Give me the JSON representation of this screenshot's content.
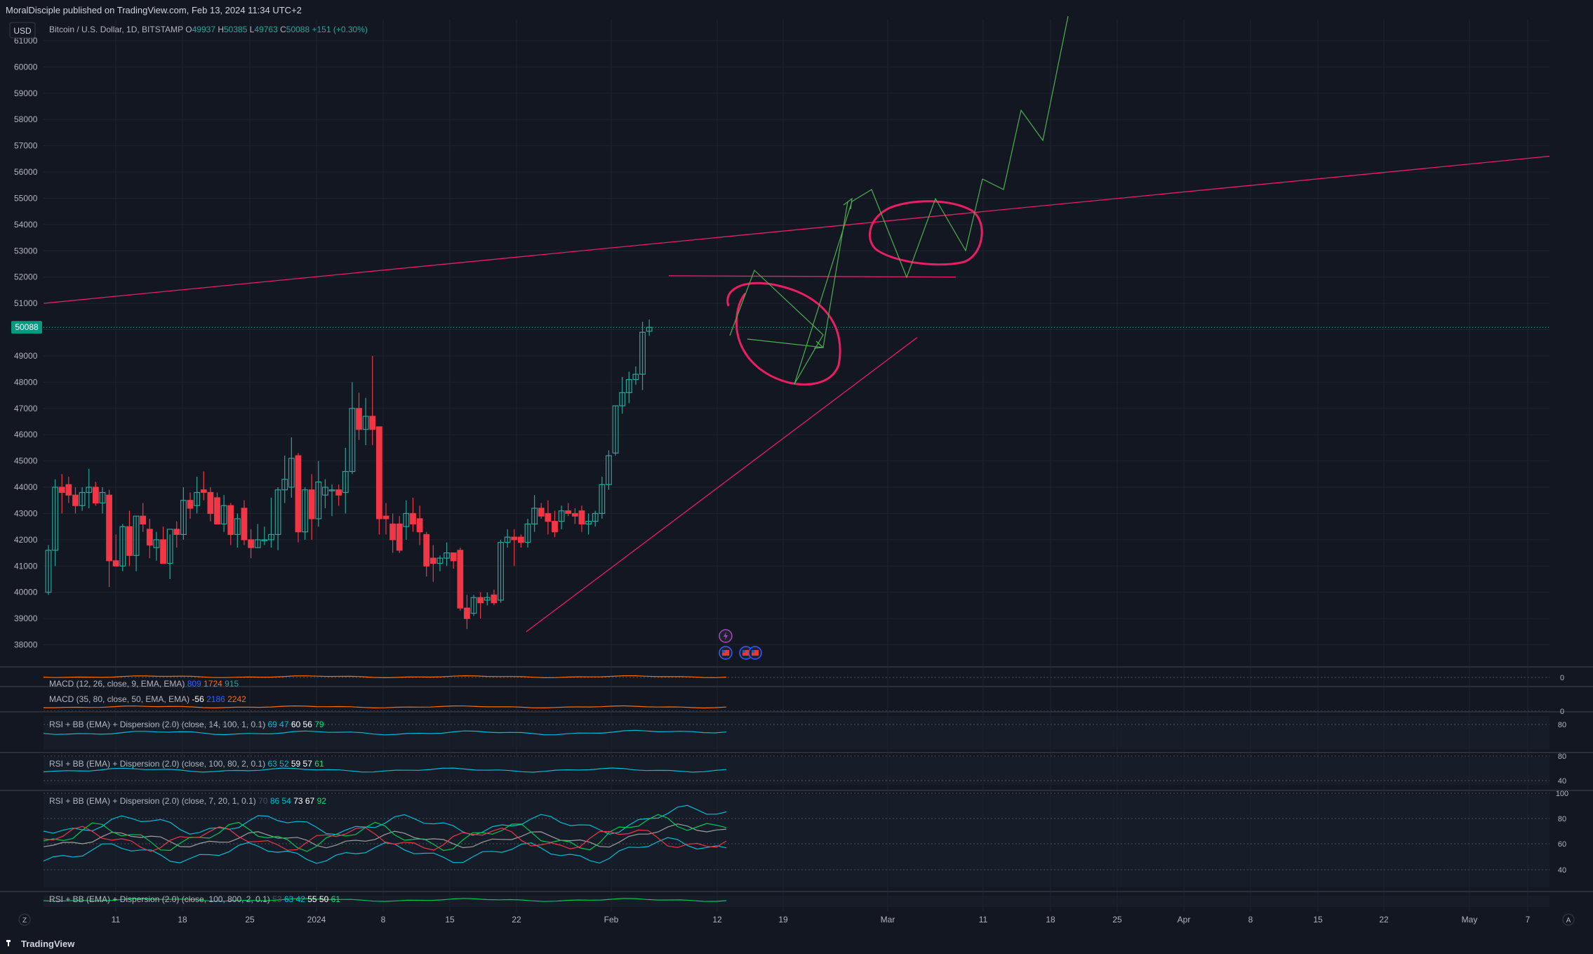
{
  "header": {
    "published": "MoralDisciple published on TradingView.com, Feb 13, 2024 11:34 UTC+2",
    "currency_button": "USD",
    "symbol": "Bitcoin / U.S. Dollar, 1D, BITSTAMP",
    "ohlc": [
      {
        "label": "O",
        "value": "49937"
      },
      {
        "label": "H",
        "value": "50385"
      },
      {
        "label": "L",
        "value": "49763"
      },
      {
        "label": "C",
        "value": "50088"
      }
    ],
    "change": "+151 (+0.30%)"
  },
  "price_badge": "50088",
  "footer": {
    "logo": "TradingView",
    "scale_left": "Z",
    "scale_right": "A"
  },
  "colors": {
    "background": "#131722",
    "grid": "#1f2331",
    "text": "#b2b5be",
    "up": "#26a69a",
    "down": "#f23645",
    "annotation": "#e91e63",
    "projection": "#4caf50",
    "badge": "#089981"
  },
  "icons": [
    "lightning-icon",
    "us-flag-icon",
    "us-flag-icon",
    "us-flag-icon"
  ],
  "chart_data": [
    {
      "type": "candlestick",
      "title": "Bitcoin / U.S. Dollar, 1D, BITSTAMP",
      "ylim": [
        37400,
        61800
      ],
      "y_ticks": [
        38000,
        39000,
        40000,
        41000,
        42000,
        43000,
        44000,
        45000,
        46000,
        47000,
        48000,
        49000,
        50000,
        51000,
        52000,
        53000,
        54000,
        55000,
        56000,
        57000,
        58000,
        59000,
        60000,
        61000
      ],
      "x_tick_labels": [
        "11",
        "18",
        "25",
        "2024",
        "8",
        "15",
        "22",
        "Feb",
        "12",
        "19",
        "Mar",
        "11",
        "18",
        "25",
        "Apr",
        "8",
        "15",
        "22",
        "May",
        "7"
      ],
      "grid": true,
      "candles": [
        {
          "date": "2023-12-05",
          "o": 40000,
          "h": 41800,
          "l": 39900,
          "c": 41600
        },
        {
          "date": "2023-12-06",
          "o": 41600,
          "h": 44300,
          "l": 41000,
          "c": 44000
        },
        {
          "date": "2023-12-07",
          "o": 44000,
          "h": 44500,
          "l": 43000,
          "c": 43800
        },
        {
          "date": "2023-12-08",
          "o": 44100,
          "h": 44400,
          "l": 43400,
          "c": 43700
        },
        {
          "date": "2023-12-09",
          "o": 43700,
          "h": 44000,
          "l": 43000,
          "c": 43300
        },
        {
          "date": "2023-12-10",
          "o": 43300,
          "h": 44000,
          "l": 43100,
          "c": 43800
        },
        {
          "date": "2023-12-11",
          "o": 43800,
          "h": 44700,
          "l": 43200,
          "c": 44000
        },
        {
          "date": "2023-12-12",
          "o": 44000,
          "h": 44200,
          "l": 43300,
          "c": 43400
        },
        {
          "date": "2023-12-13",
          "o": 43400,
          "h": 44000,
          "l": 43000,
          "c": 43800
        },
        {
          "date": "2023-12-14",
          "o": 43700,
          "h": 43900,
          "l": 40200,
          "c": 41200
        },
        {
          "date": "2023-12-15",
          "o": 41200,
          "h": 42200,
          "l": 41000,
          "c": 41000
        },
        {
          "date": "2023-12-16",
          "o": 41000,
          "h": 42600,
          "l": 40800,
          "c": 42500
        },
        {
          "date": "2023-12-17",
          "o": 42500,
          "h": 43100,
          "l": 41000,
          "c": 41400
        },
        {
          "date": "2023-12-18",
          "o": 41400,
          "h": 42900,
          "l": 40800,
          "c": 42900
        },
        {
          "date": "2023-12-19",
          "o": 42900,
          "h": 43400,
          "l": 42300,
          "c": 42600
        },
        {
          "date": "2023-12-20",
          "o": 42400,
          "h": 42800,
          "l": 41300,
          "c": 41800
        },
        {
          "date": "2023-12-21",
          "o": 41700,
          "h": 42300,
          "l": 41200,
          "c": 42000
        },
        {
          "date": "2023-12-22",
          "o": 42000,
          "h": 42500,
          "l": 41100,
          "c": 41100
        },
        {
          "date": "2023-12-23",
          "o": 41100,
          "h": 42200,
          "l": 40500,
          "c": 42400
        },
        {
          "date": "2023-12-24",
          "o": 42400,
          "h": 42700,
          "l": 41700,
          "c": 42200
        },
        {
          "date": "2023-12-25",
          "o": 42200,
          "h": 44000,
          "l": 42000,
          "c": 43500
        },
        {
          "date": "2023-12-26",
          "o": 43500,
          "h": 43800,
          "l": 42800,
          "c": 43200
        },
        {
          "date": "2023-12-27",
          "o": 43300,
          "h": 44400,
          "l": 43000,
          "c": 43800
        },
        {
          "date": "2023-12-28",
          "o": 43900,
          "h": 44600,
          "l": 43500,
          "c": 43800
        },
        {
          "date": "2023-12-29",
          "o": 43800,
          "h": 44000,
          "l": 42700,
          "c": 43000
        },
        {
          "date": "2023-12-30",
          "o": 43600,
          "h": 43800,
          "l": 42800,
          "c": 42600
        },
        {
          "date": "2023-12-31",
          "o": 42600,
          "h": 43700,
          "l": 42300,
          "c": 43300
        },
        {
          "date": "2024-01-01",
          "o": 43300,
          "h": 43400,
          "l": 41800,
          "c": 42200
        },
        {
          "date": "2024-01-02",
          "o": 42200,
          "h": 43000,
          "l": 41700,
          "c": 42800
        },
        {
          "date": "2024-01-03",
          "o": 43200,
          "h": 43500,
          "l": 41800,
          "c": 42000
        },
        {
          "date": "2024-01-04",
          "o": 42000,
          "h": 42400,
          "l": 41300,
          "c": 41700
        },
        {
          "date": "2024-01-05",
          "o": 41700,
          "h": 42600,
          "l": 41700,
          "c": 42000
        },
        {
          "date": "2024-01-06",
          "o": 42000,
          "h": 42500,
          "l": 41800,
          "c": 42000
        },
        {
          "date": "2024-01-07",
          "o": 42000,
          "h": 43600,
          "l": 41700,
          "c": 42200
        },
        {
          "date": "2024-01-08",
          "o": 42200,
          "h": 44000,
          "l": 41600,
          "c": 43900
        },
        {
          "date": "2024-01-09",
          "o": 43900,
          "h": 45200,
          "l": 43400,
          "c": 44300
        },
        {
          "date": "2024-01-10",
          "o": 44000,
          "h": 45900,
          "l": 43600,
          "c": 45100
        },
        {
          "date": "2024-01-11",
          "o": 45200,
          "h": 45300,
          "l": 41900,
          "c": 42300
        },
        {
          "date": "2024-01-12",
          "o": 42300,
          "h": 44000,
          "l": 42000,
          "c": 43900
        },
        {
          "date": "2024-01-13",
          "o": 43900,
          "h": 44500,
          "l": 42000,
          "c": 42800
        },
        {
          "date": "2024-01-14",
          "o": 42800,
          "h": 45000,
          "l": 42500,
          "c": 44200
        },
        {
          "date": "2024-01-15",
          "o": 43700,
          "h": 44300,
          "l": 43200,
          "c": 44000
        },
        {
          "date": "2024-01-16",
          "o": 43900,
          "h": 44100,
          "l": 42900,
          "c": 43900
        },
        {
          "date": "2024-01-17",
          "o": 43900,
          "h": 44100,
          "l": 43300,
          "c": 43700
        },
        {
          "date": "2024-01-18",
          "o": 43800,
          "h": 45500,
          "l": 43000,
          "c": 44600
        },
        {
          "date": "2024-01-19",
          "o": 44600,
          "h": 48000,
          "l": 44500,
          "c": 47000
        },
        {
          "date": "2024-01-20",
          "o": 47000,
          "h": 47600,
          "l": 45800,
          "c": 46200
        },
        {
          "date": "2024-01-21",
          "o": 46200,
          "h": 47400,
          "l": 45600,
          "c": 46700
        },
        {
          "date": "2024-01-22",
          "o": 46700,
          "h": 49000,
          "l": 45600,
          "c": 46200
        },
        {
          "date": "2024-01-23",
          "o": 46300,
          "h": 46300,
          "l": 42200,
          "c": 42800
        },
        {
          "date": "2024-01-24",
          "o": 42900,
          "h": 43400,
          "l": 42200,
          "c": 42800
        },
        {
          "date": "2024-01-25",
          "o": 42600,
          "h": 43000,
          "l": 41500,
          "c": 42000
        },
        {
          "date": "2024-01-26",
          "o": 42600,
          "h": 42900,
          "l": 41500,
          "c": 41600
        },
        {
          "date": "2024-01-27",
          "o": 42500,
          "h": 43500,
          "l": 42000,
          "c": 43000
        },
        {
          "date": "2024-01-28",
          "o": 43000,
          "h": 43600,
          "l": 42300,
          "c": 42600
        },
        {
          "date": "2024-01-29",
          "o": 42800,
          "h": 43300,
          "l": 41800,
          "c": 42300
        },
        {
          "date": "2024-01-30",
          "o": 42200,
          "h": 42300,
          "l": 40600,
          "c": 41000
        },
        {
          "date": "2024-01-31",
          "o": 41300,
          "h": 41800,
          "l": 40400,
          "c": 41100
        },
        {
          "date": "2024-02-01",
          "o": 41100,
          "h": 41400,
          "l": 40800,
          "c": 41300
        },
        {
          "date": "2024-02-02",
          "o": 41300,
          "h": 41900,
          "l": 41000,
          "c": 41500
        },
        {
          "date": "2024-02-03",
          "o": 41500,
          "h": 41500,
          "l": 40900,
          "c": 41200
        },
        {
          "date": "2024-02-04",
          "o": 41600,
          "h": 41700,
          "l": 39300,
          "c": 39400
        },
        {
          "date": "2024-02-05",
          "o": 39400,
          "h": 39900,
          "l": 38600,
          "c": 39000
        },
        {
          "date": "2024-02-06",
          "o": 39200,
          "h": 39900,
          "l": 39100,
          "c": 39800
        },
        {
          "date": "2024-02-07",
          "o": 39800,
          "h": 40000,
          "l": 39000,
          "c": 39600
        },
        {
          "date": "2024-02-08",
          "o": 39700,
          "h": 40000,
          "l": 39500,
          "c": 39800
        },
        {
          "date": "2024-02-09",
          "o": 39900,
          "h": 40100,
          "l": 39500,
          "c": 39600
        },
        {
          "date": "2024-02-10",
          "o": 39700,
          "h": 42000,
          "l": 39600,
          "c": 41900
        },
        {
          "date": "2024-02-11",
          "o": 41900,
          "h": 42400,
          "l": 41700,
          "c": 42100
        },
        {
          "date": "2024-02-12",
          "o": 42100,
          "h": 42400,
          "l": 41000,
          "c": 42000
        },
        {
          "date": "2024-02-13",
          "o": 42100,
          "h": 42200,
          "l": 41700,
          "c": 41900
        },
        {
          "date": "2024-02-14",
          "o": 41900,
          "h": 42800,
          "l": 41700,
          "c": 42600
        },
        {
          "date": "2024-02-15",
          "o": 42600,
          "h": 43700,
          "l": 42300,
          "c": 43200
        },
        {
          "date": "2024-02-16",
          "o": 43200,
          "h": 43400,
          "l": 42800,
          "c": 42900
        },
        {
          "date": "2024-02-17",
          "o": 43000,
          "h": 43500,
          "l": 42200,
          "c": 42700
        },
        {
          "date": "2024-02-18",
          "o": 42700,
          "h": 43100,
          "l": 42100,
          "c": 42300
        },
        {
          "date": "2024-02-19",
          "o": 42700,
          "h": 43300,
          "l": 42400,
          "c": 43100
        },
        {
          "date": "2024-02-20",
          "o": 43100,
          "h": 43400,
          "l": 42900,
          "c": 43000
        },
        {
          "date": "2024-02-21",
          "o": 43000,
          "h": 43200,
          "l": 42600,
          "c": 42900
        },
        {
          "date": "2024-02-22",
          "o": 43100,
          "h": 43300,
          "l": 42300,
          "c": 42600
        },
        {
          "date": "2024-02-23",
          "o": 42600,
          "h": 43000,
          "l": 42200,
          "c": 42700
        },
        {
          "date": "2024-02-24",
          "o": 42700,
          "h": 43100,
          "l": 42500,
          "c": 43000
        },
        {
          "date": "2024-02-25",
          "o": 43000,
          "h": 44400,
          "l": 42800,
          "c": 44100
        },
        {
          "date": "2024-02-26",
          "o": 44100,
          "h": 45400,
          "l": 43900,
          "c": 45200
        },
        {
          "date": "2024-02-27",
          "o": 45300,
          "h": 47100,
          "l": 45200,
          "c": 47100
        },
        {
          "date": "2024-02-28",
          "o": 47100,
          "h": 48200,
          "l": 46800,
          "c": 47600
        },
        {
          "date": "2024-02-29",
          "o": 47600,
          "h": 48400,
          "l": 47200,
          "c": 48100
        },
        {
          "date": "2024-03-01",
          "o": 48100,
          "h": 48600,
          "l": 47900,
          "c": 48300
        },
        {
          "date": "2024-03-02",
          "o": 48300,
          "h": 50300,
          "l": 47700,
          "c": 49900
        },
        {
          "date": "2024-03-03",
          "o": 49937,
          "h": 50385,
          "l": 49763,
          "c": 50088
        }
      ]
    },
    {
      "type": "line",
      "title": "MACD (12, 26, close, 9, EMA, EMA)",
      "values": [
        "809",
        "1724",
        "915"
      ],
      "y_ticks": [
        0
      ]
    },
    {
      "type": "line",
      "title": "MACD (35, 80, close, 50, EMA, EMA)",
      "values": [
        "-56",
        "2186",
        "2242"
      ],
      "y_ticks": [
        0
      ]
    },
    {
      "type": "line",
      "title": "RSI + BB (EMA) + Dispersion (2.0) (close, 14, 100, 1, 0.1)",
      "values": [
        "69",
        "47",
        "60",
        "56",
        "79"
      ],
      "y_ticks": [
        80
      ]
    },
    {
      "type": "line",
      "title": "RSI + BB (EMA) + Dispersion (2.0) (close, 100, 80, 2, 0.1)",
      "values": [
        "63",
        "52",
        "59",
        "57",
        "61"
      ],
      "y_ticks": [
        80,
        40
      ]
    },
    {
      "type": "line",
      "title": "RSI + BB (EMA) + Dispersion (2.0) (close, 7, 20, 1, 0.1)",
      "values": [
        "70",
        "86",
        "54",
        "73",
        "67",
        "92"
      ],
      "y_ticks": [
        100,
        80,
        60,
        40
      ]
    },
    {
      "type": "line",
      "title": "RSI + BB (EMA) + Dispersion (2.0) (close, 100, 800, 2, 0.1)",
      "values": [
        "53",
        "63",
        "42",
        "55",
        "50",
        "61"
      ],
      "y_ticks": []
    }
  ]
}
